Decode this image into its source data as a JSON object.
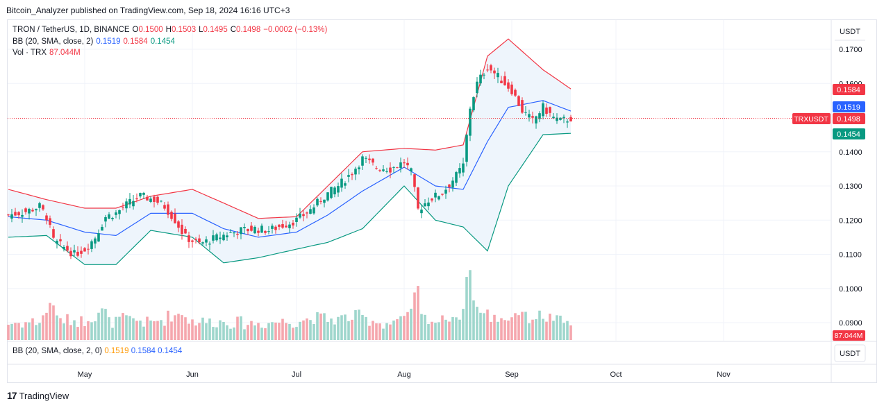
{
  "attribution": "Bitcoin_Analyzer published on TradingView.com, Sep 18, 2024 16:16 UTC+3",
  "header": {
    "symbol": "TRON / TetherUS, 1D, BINANCE",
    "o_label": "O",
    "o_value": "0.1500",
    "h_label": "H",
    "h_value": "0.1503",
    "l_label": "L",
    "l_value": "0.1495",
    "c_label": "C",
    "c_value": "0.1498",
    "change": "−0.0002 (−0.13%)",
    "bb_label": "BB (20, SMA, close, 2)",
    "bb_basis": "0.1519",
    "bb_upper": "0.1584",
    "bb_lower": "0.1454",
    "vol_label": "Vol · TRX",
    "vol_value": "87.044M"
  },
  "bb_pane": {
    "label": "BB (20, SMA, close, 2, 0)",
    "basis": "0.1519",
    "upper": "0.1584",
    "lower": "0.1454"
  },
  "price_axis": {
    "currency_top": "USDT",
    "currency_bottom": "USDT",
    "tick_labels": [
      "0.1700",
      "0.1600",
      "0.1400",
      "0.1300",
      "0.1200",
      "0.1100",
      "0.1000",
      "0.0900"
    ],
    "badges": {
      "upper": "0.1584",
      "basis": "0.1519",
      "symbol": "TRXUSDT",
      "last": "0.1498",
      "lower": "0.1454",
      "volume": "87.044M"
    }
  },
  "time_axis": {
    "labels": [
      "May",
      "Jun",
      "Jul",
      "Aug",
      "Sep",
      "Oct",
      "Nov"
    ]
  },
  "footer": {
    "logo": "17",
    "brand": "TradingView"
  },
  "colors": {
    "up": "#089981",
    "down": "#f23645",
    "basis": "#2962ff",
    "upper": "#f23645",
    "lower": "#089981",
    "fill": "#eef5fc"
  },
  "chart_data": {
    "type": "candlestick",
    "symbol": "TRXUSDT",
    "interval": "1D",
    "exchange": "BINANCE",
    "ylim": [
      0.085,
      0.178
    ],
    "x_start": "2024-04-09",
    "series": [
      {
        "name": "Price",
        "close_points": [
          [
            "2024-04-09",
            0.1215
          ],
          [
            "2024-04-14",
            0.1225
          ],
          [
            "2024-04-18",
            0.124
          ],
          [
            "2024-04-20",
            0.121
          ],
          [
            "2024-04-22",
            0.114
          ],
          [
            "2024-04-25",
            0.112
          ],
          [
            "2024-04-28",
            0.11
          ],
          [
            "2024-05-01",
            0.1115
          ],
          [
            "2024-05-04",
            0.115
          ],
          [
            "2024-05-07",
            0.121
          ],
          [
            "2024-05-10",
            0.122
          ],
          [
            "2024-05-13",
            0.1245
          ],
          [
            "2024-05-17",
            0.127
          ],
          [
            "2024-05-21",
            0.126
          ],
          [
            "2024-05-24",
            0.124
          ],
          [
            "2024-05-27",
            0.12
          ],
          [
            "2024-05-30",
            0.115
          ],
          [
            "2024-06-03",
            0.113
          ],
          [
            "2024-06-07",
            0.1145
          ],
          [
            "2024-06-11",
            0.116
          ],
          [
            "2024-06-15",
            0.117
          ],
          [
            "2024-06-19",
            0.1175
          ],
          [
            "2024-06-23",
            0.117
          ],
          [
            "2024-06-27",
            0.1185
          ],
          [
            "2024-07-01",
            0.12
          ],
          [
            "2024-07-05",
            0.123
          ],
          [
            "2024-07-09",
            0.127
          ],
          [
            "2024-07-13",
            0.13
          ],
          [
            "2024-07-17",
            0.134
          ],
          [
            "2024-07-20",
            0.138
          ],
          [
            "2024-07-24",
            0.1355
          ],
          [
            "2024-07-28",
            0.135
          ],
          [
            "2024-08-01",
            0.137
          ],
          [
            "2024-08-03",
            0.134
          ],
          [
            "2024-08-05",
            0.123
          ],
          [
            "2024-08-08",
            0.126
          ],
          [
            "2024-08-12",
            0.128
          ],
          [
            "2024-08-16",
            0.133
          ],
          [
            "2024-08-18",
            0.136
          ],
          [
            "2024-08-20",
            0.153
          ],
          [
            "2024-08-22",
            0.16
          ],
          [
            "2024-08-25",
            0.165
          ],
          [
            "2024-08-28",
            0.162
          ],
          [
            "2024-09-01",
            0.158
          ],
          [
            "2024-09-04",
            0.152
          ],
          [
            "2024-09-07",
            0.149
          ],
          [
            "2024-09-10",
            0.153
          ],
          [
            "2024-09-13",
            0.15
          ],
          [
            "2024-09-15",
            0.149
          ],
          [
            "2024-09-18",
            0.1498
          ]
        ]
      },
      {
        "name": "BB Upper",
        "points": [
          [
            "2024-04-09",
            0.129
          ],
          [
            "2024-04-20",
            0.126
          ],
          [
            "2024-05-01",
            0.1235
          ],
          [
            "2024-05-10",
            0.1235
          ],
          [
            "2024-05-20",
            0.127
          ],
          [
            "2024-06-01",
            0.129
          ],
          [
            "2024-06-10",
            0.125
          ],
          [
            "2024-06-20",
            0.1205
          ],
          [
            "2024-07-01",
            0.121
          ],
          [
            "2024-07-10",
            0.13
          ],
          [
            "2024-07-20",
            0.14
          ],
          [
            "2024-08-01",
            0.141
          ],
          [
            "2024-08-10",
            0.1405
          ],
          [
            "2024-08-18",
            0.142
          ],
          [
            "2024-08-25",
            0.168
          ],
          [
            "2024-08-31",
            0.173
          ],
          [
            "2024-09-10",
            0.164
          ],
          [
            "2024-09-18",
            0.1584
          ]
        ]
      },
      {
        "name": "BB Basis",
        "points": [
          [
            "2024-04-09",
            0.121
          ],
          [
            "2024-04-20",
            0.12
          ],
          [
            "2024-05-01",
            0.1165
          ],
          [
            "2024-05-10",
            0.1155
          ],
          [
            "2024-05-20",
            0.122
          ],
          [
            "2024-06-01",
            0.122
          ],
          [
            "2024-06-10",
            0.1175
          ],
          [
            "2024-06-20",
            0.115
          ],
          [
            "2024-07-01",
            0.1165
          ],
          [
            "2024-07-10",
            0.1215
          ],
          [
            "2024-07-20",
            0.1285
          ],
          [
            "2024-08-01",
            0.1355
          ],
          [
            "2024-08-10",
            0.13
          ],
          [
            "2024-08-18",
            0.129
          ],
          [
            "2024-08-25",
            0.143
          ],
          [
            "2024-08-31",
            0.153
          ],
          [
            "2024-09-10",
            0.155
          ],
          [
            "2024-09-18",
            0.1519
          ]
        ]
      },
      {
        "name": "BB Lower",
        "points": [
          [
            "2024-04-09",
            0.115
          ],
          [
            "2024-04-20",
            0.1155
          ],
          [
            "2024-05-01",
            0.107
          ],
          [
            "2024-05-10",
            0.107
          ],
          [
            "2024-05-20",
            0.117
          ],
          [
            "2024-06-01",
            0.115
          ],
          [
            "2024-06-10",
            0.1075
          ],
          [
            "2024-06-20",
            0.109
          ],
          [
            "2024-07-01",
            0.1115
          ],
          [
            "2024-07-10",
            0.1135
          ],
          [
            "2024-07-20",
            0.1175
          ],
          [
            "2024-08-01",
            0.13
          ],
          [
            "2024-08-10",
            0.12
          ],
          [
            "2024-08-18",
            0.118
          ],
          [
            "2024-08-25",
            0.111
          ],
          [
            "2024-08-31",
            0.13
          ],
          [
            "2024-09-10",
            0.145
          ],
          [
            "2024-09-18",
            0.1454
          ]
        ]
      }
    ]
  }
}
